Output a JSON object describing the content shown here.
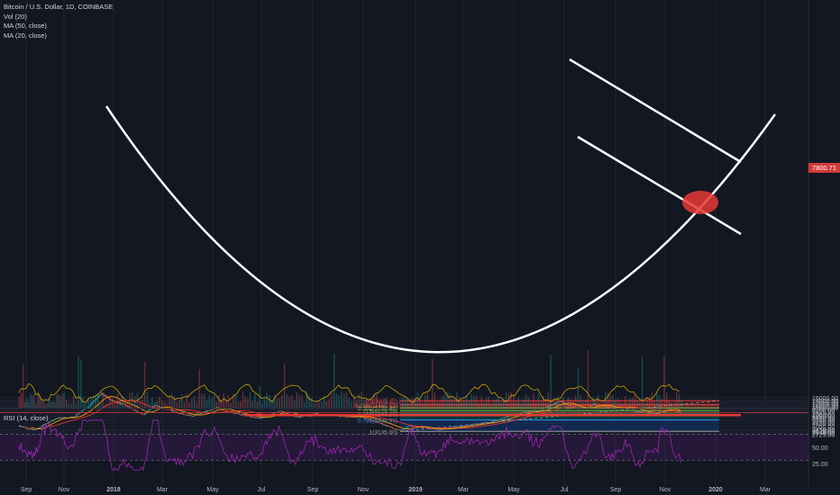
{
  "legend": {
    "symbol": "Bitcoin / U.S. Dollar, 1D, COINBASE",
    "vol": "Vol (20)",
    "ma50": "MA (50, close)",
    "ma20": "MA (20, close)",
    "rsi": "RSI (14, close)"
  },
  "last_price_label": "7800.71",
  "colors": {
    "background": "#131722",
    "up_candle": "#26a69a",
    "down_candle": "#ef5350",
    "ma50": "#e0342c",
    "ma20": "#ff9800",
    "rsi_line": "#9c27b0",
    "annotation": "#ffffff",
    "support_line": "#e53935",
    "last_price": "#d23a3a"
  },
  "chart_data": [
    {
      "type": "candlestick",
      "title": "Bitcoin / U.S. Dollar, 1D, COINBASE",
      "x_ticks": [
        "Sep",
        "Nov",
        "2018",
        "Mar",
        "May",
        "Jul",
        "Sep",
        "Nov",
        "2019",
        "Mar",
        "May",
        "Jul",
        "Sep",
        "Nov",
        "2020",
        "Mar"
      ],
      "y_ticks": [
        16000,
        14000,
        13000,
        12000,
        10800,
        10000,
        9200,
        8400,
        7800,
        7050,
        6450,
        5850,
        5250,
        4650,
        4050,
        3450,
        3170,
        2945,
        2725
      ],
      "y_scale": "log",
      "grid": true,
      "price_path": [
        {
          "date": "2017-08-20",
          "close": 4100
        },
        {
          "date": "2017-09-15",
          "close": 3300
        },
        {
          "date": "2017-10-01",
          "close": 4400
        },
        {
          "date": "2017-10-20",
          "close": 5900
        },
        {
          "date": "2017-11-12",
          "close": 6200
        },
        {
          "date": "2017-11-30",
          "close": 10000
        },
        {
          "date": "2017-12-17",
          "close": 19600
        },
        {
          "date": "2017-12-31",
          "close": 13800
        },
        {
          "date": "2018-01-16",
          "close": 11000
        },
        {
          "date": "2018-02-06",
          "close": 6900
        },
        {
          "date": "2018-02-20",
          "close": 11100
        },
        {
          "date": "2018-03-10",
          "close": 8800
        },
        {
          "date": "2018-03-31",
          "close": 6900
        },
        {
          "date": "2018-04-06",
          "close": 6600
        },
        {
          "date": "2018-05-05",
          "close": 9800
        },
        {
          "date": "2018-05-29",
          "close": 7500
        },
        {
          "date": "2018-06-28",
          "close": 5900
        },
        {
          "date": "2018-07-24",
          "close": 8400
        },
        {
          "date": "2018-08-14",
          "close": 6200
        },
        {
          "date": "2018-09-04",
          "close": 7300
        },
        {
          "date": "2018-09-30",
          "close": 6600
        },
        {
          "date": "2018-10-31",
          "close": 6300
        },
        {
          "date": "2018-11-19",
          "close": 4700
        },
        {
          "date": "2018-12-15",
          "close": 3200
        },
        {
          "date": "2018-12-24",
          "close": 4100
        },
        {
          "date": "2019-01-31",
          "close": 3450
        },
        {
          "date": "2019-02-24",
          "close": 3900
        },
        {
          "date": "2019-04-02",
          "close": 4900
        },
        {
          "date": "2019-05-14",
          "close": 8000
        },
        {
          "date": "2019-06-01",
          "close": 8500
        },
        {
          "date": "2019-06-26",
          "close": 13500
        },
        {
          "date": "2019-07-16",
          "close": 9500
        },
        {
          "date": "2019-07-31",
          "close": 10100
        },
        {
          "date": "2019-08-06",
          "close": 11800
        },
        {
          "date": "2019-08-29",
          "close": 9500
        },
        {
          "date": "2019-09-19",
          "close": 10200
        },
        {
          "date": "2019-09-25",
          "close": 8400
        },
        {
          "date": "2019-10-23",
          "close": 7400
        },
        {
          "date": "2019-10-26",
          "close": 9800
        },
        {
          "date": "2019-11-10",
          "close": 8800
        },
        {
          "date": "2019-11-20",
          "close": 7800
        }
      ],
      "fibonacci": [
        {
          "ratio": "0",
          "label": "0(13901.12)",
          "price": 13901.12
        },
        {
          "ratio": "0.236",
          "label": "0.236(11360.12)",
          "price": 11360.12
        },
        {
          "ratio": "0.382",
          "label": "0.382(9788.46)",
          "price": 9788.46
        },
        {
          "ratio": "0.5",
          "label": "0.5(8518.06)",
          "price": 8518.06
        },
        {
          "ratio": "0.618",
          "label": "0.618(7247.66)",
          "price": 7247.66
        },
        {
          "ratio": "0.786",
          "label": "0.786(5438.99)",
          "price": 5438.99
        },
        {
          "ratio": "1",
          "label": "1(3135.00)",
          "price": 3135.0
        }
      ],
      "horizontal_support": 6900,
      "last_price": 7800.71
    },
    {
      "type": "line",
      "title": "RSI (14, close)",
      "y_ticks": [
        100.0,
        75.0,
        50.0,
        25.0
      ],
      "ylim": [
        0,
        100
      ],
      "bands": [
        30,
        70
      ]
    }
  ]
}
